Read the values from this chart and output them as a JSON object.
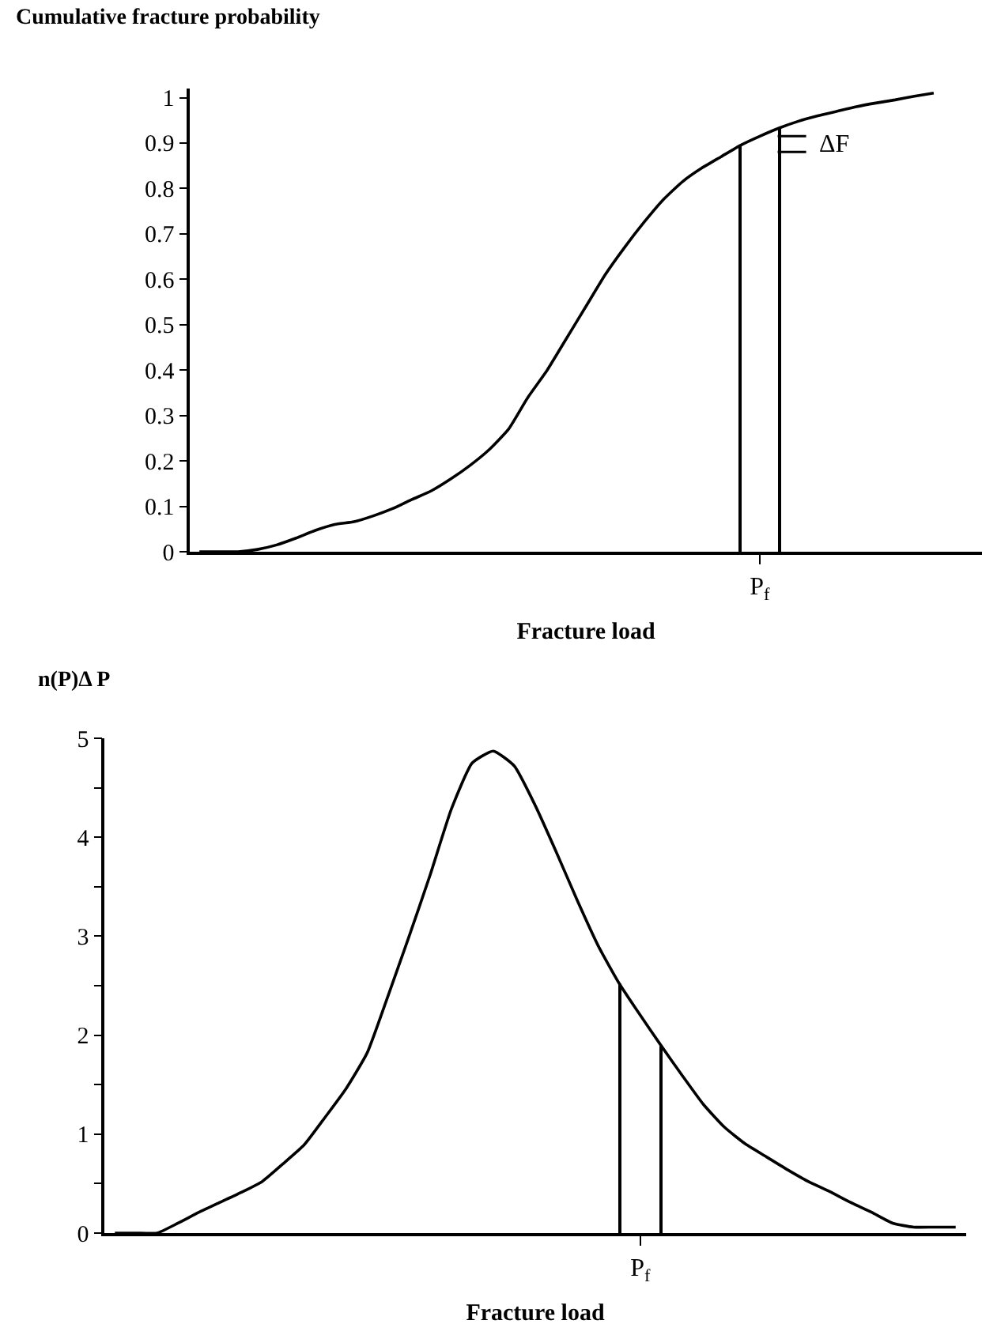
{
  "chart_data": [
    {
      "type": "line",
      "ylabel": "Cumulative fracture probability",
      "xlabel": "Fracture load",
      "categories": [
        null,
        null,
        null,
        null,
        null,
        null,
        null,
        null,
        null,
        null,
        null,
        null,
        null,
        null,
        null,
        null,
        null,
        null,
        null,
        null,
        null,
        null,
        null,
        null,
        null,
        null,
        null,
        null,
        null,
        "P$_{f}$",
        null,
        null,
        null,
        null,
        null,
        null,
        null,
        null,
        null,
        null,
        null
      ],
      "ylim": [
        0,
        1.02
      ],
      "yticks": [
        0,
        0.1,
        0.2,
        0.3,
        0.4,
        0.5,
        0.6,
        0.7,
        0.8,
        0.9,
        1
      ],
      "series": [
        {
          "color": "#000000",
          "values": [
            0,
            0,
            0,
            0.005,
            0.015,
            0.03,
            0.047,
            0.06,
            0.066,
            0.079,
            0.095,
            0.115,
            0.134,
            0.16,
            0.19,
            0.225,
            0.27,
            0.34,
            0.4,
            0.47,
            0.54,
            0.61,
            0.67,
            0.725,
            0.775,
            0.815,
            0.845,
            0.87,
            0.895,
            0.915,
            0.933,
            0.948,
            0.96,
            0.97,
            0.98,
            0.988,
            0.995,
            1.003,
            1.01,
            null,
            null
          ]
        },
        {
          "type": "bar",
          "color": "#000000",
          "values": [
            null,
            null,
            null,
            null,
            null,
            null,
            null,
            null,
            null,
            null,
            null,
            null,
            null,
            null,
            null,
            null,
            null,
            null,
            null,
            null,
            null,
            null,
            null,
            null,
            null,
            null,
            null,
            null,
            0.895,
            null,
            0.933,
            null,
            null,
            null,
            null,
            null,
            null,
            null,
            null,
            null,
            null
          ]
        }
      ],
      "annotations": [
        "ΔF"
      ]
    },
    {
      "type": "line",
      "ylabel": "n(P)Δ P",
      "xlabel": "Fracture load",
      "categories": [
        null,
        null,
        null,
        null,
        null,
        null,
        null,
        null,
        null,
        null,
        null,
        null,
        null,
        null,
        null,
        null,
        null,
        null,
        null,
        null,
        null,
        null,
        null,
        null,
        null,
        "P$_{f}$",
        null,
        null,
        null,
        null,
        null,
        null,
        null,
        null,
        null,
        null,
        null,
        null,
        null,
        null,
        null
      ],
      "ylim": [
        0,
        5
      ],
      "yticks": [
        0,
        {
          "value": 0.5,
          "label": null
        },
        1,
        {
          "value": 1.5,
          "label": null
        },
        2,
        {
          "value": 2.5,
          "label": null
        },
        3,
        {
          "value": 3.5,
          "label": null
        },
        4,
        {
          "value": 4.5,
          "label": null
        },
        5
      ],
      "series": [
        {
          "color": "#000000",
          "values": [
            0,
            0,
            0,
            0.1,
            0.21,
            0.31,
            0.41,
            0.52,
            0.7,
            0.89,
            1.17,
            1.46,
            1.82,
            2.4,
            3.0,
            3.62,
            4.28,
            4.75,
            4.87,
            4.72,
            4.32,
            3.85,
            3.36,
            2.9,
            2.52,
            2.2,
            1.89,
            1.59,
            1.3,
            1.07,
            0.9,
            0.77,
            0.64,
            0.52,
            0.42,
            0.31,
            0.21,
            0.1,
            0.06,
            0.06,
            0.06
          ]
        },
        {
          "type": "bar",
          "color": "#000000",
          "values": [
            null,
            null,
            null,
            null,
            null,
            null,
            null,
            null,
            null,
            null,
            null,
            null,
            null,
            null,
            null,
            null,
            null,
            null,
            null,
            null,
            null,
            null,
            null,
            null,
            2.52,
            null,
            1.89,
            null,
            null,
            null,
            null,
            null,
            null,
            null,
            null,
            null,
            null,
            null,
            null,
            null,
            null
          ]
        }
      ]
    }
  ]
}
